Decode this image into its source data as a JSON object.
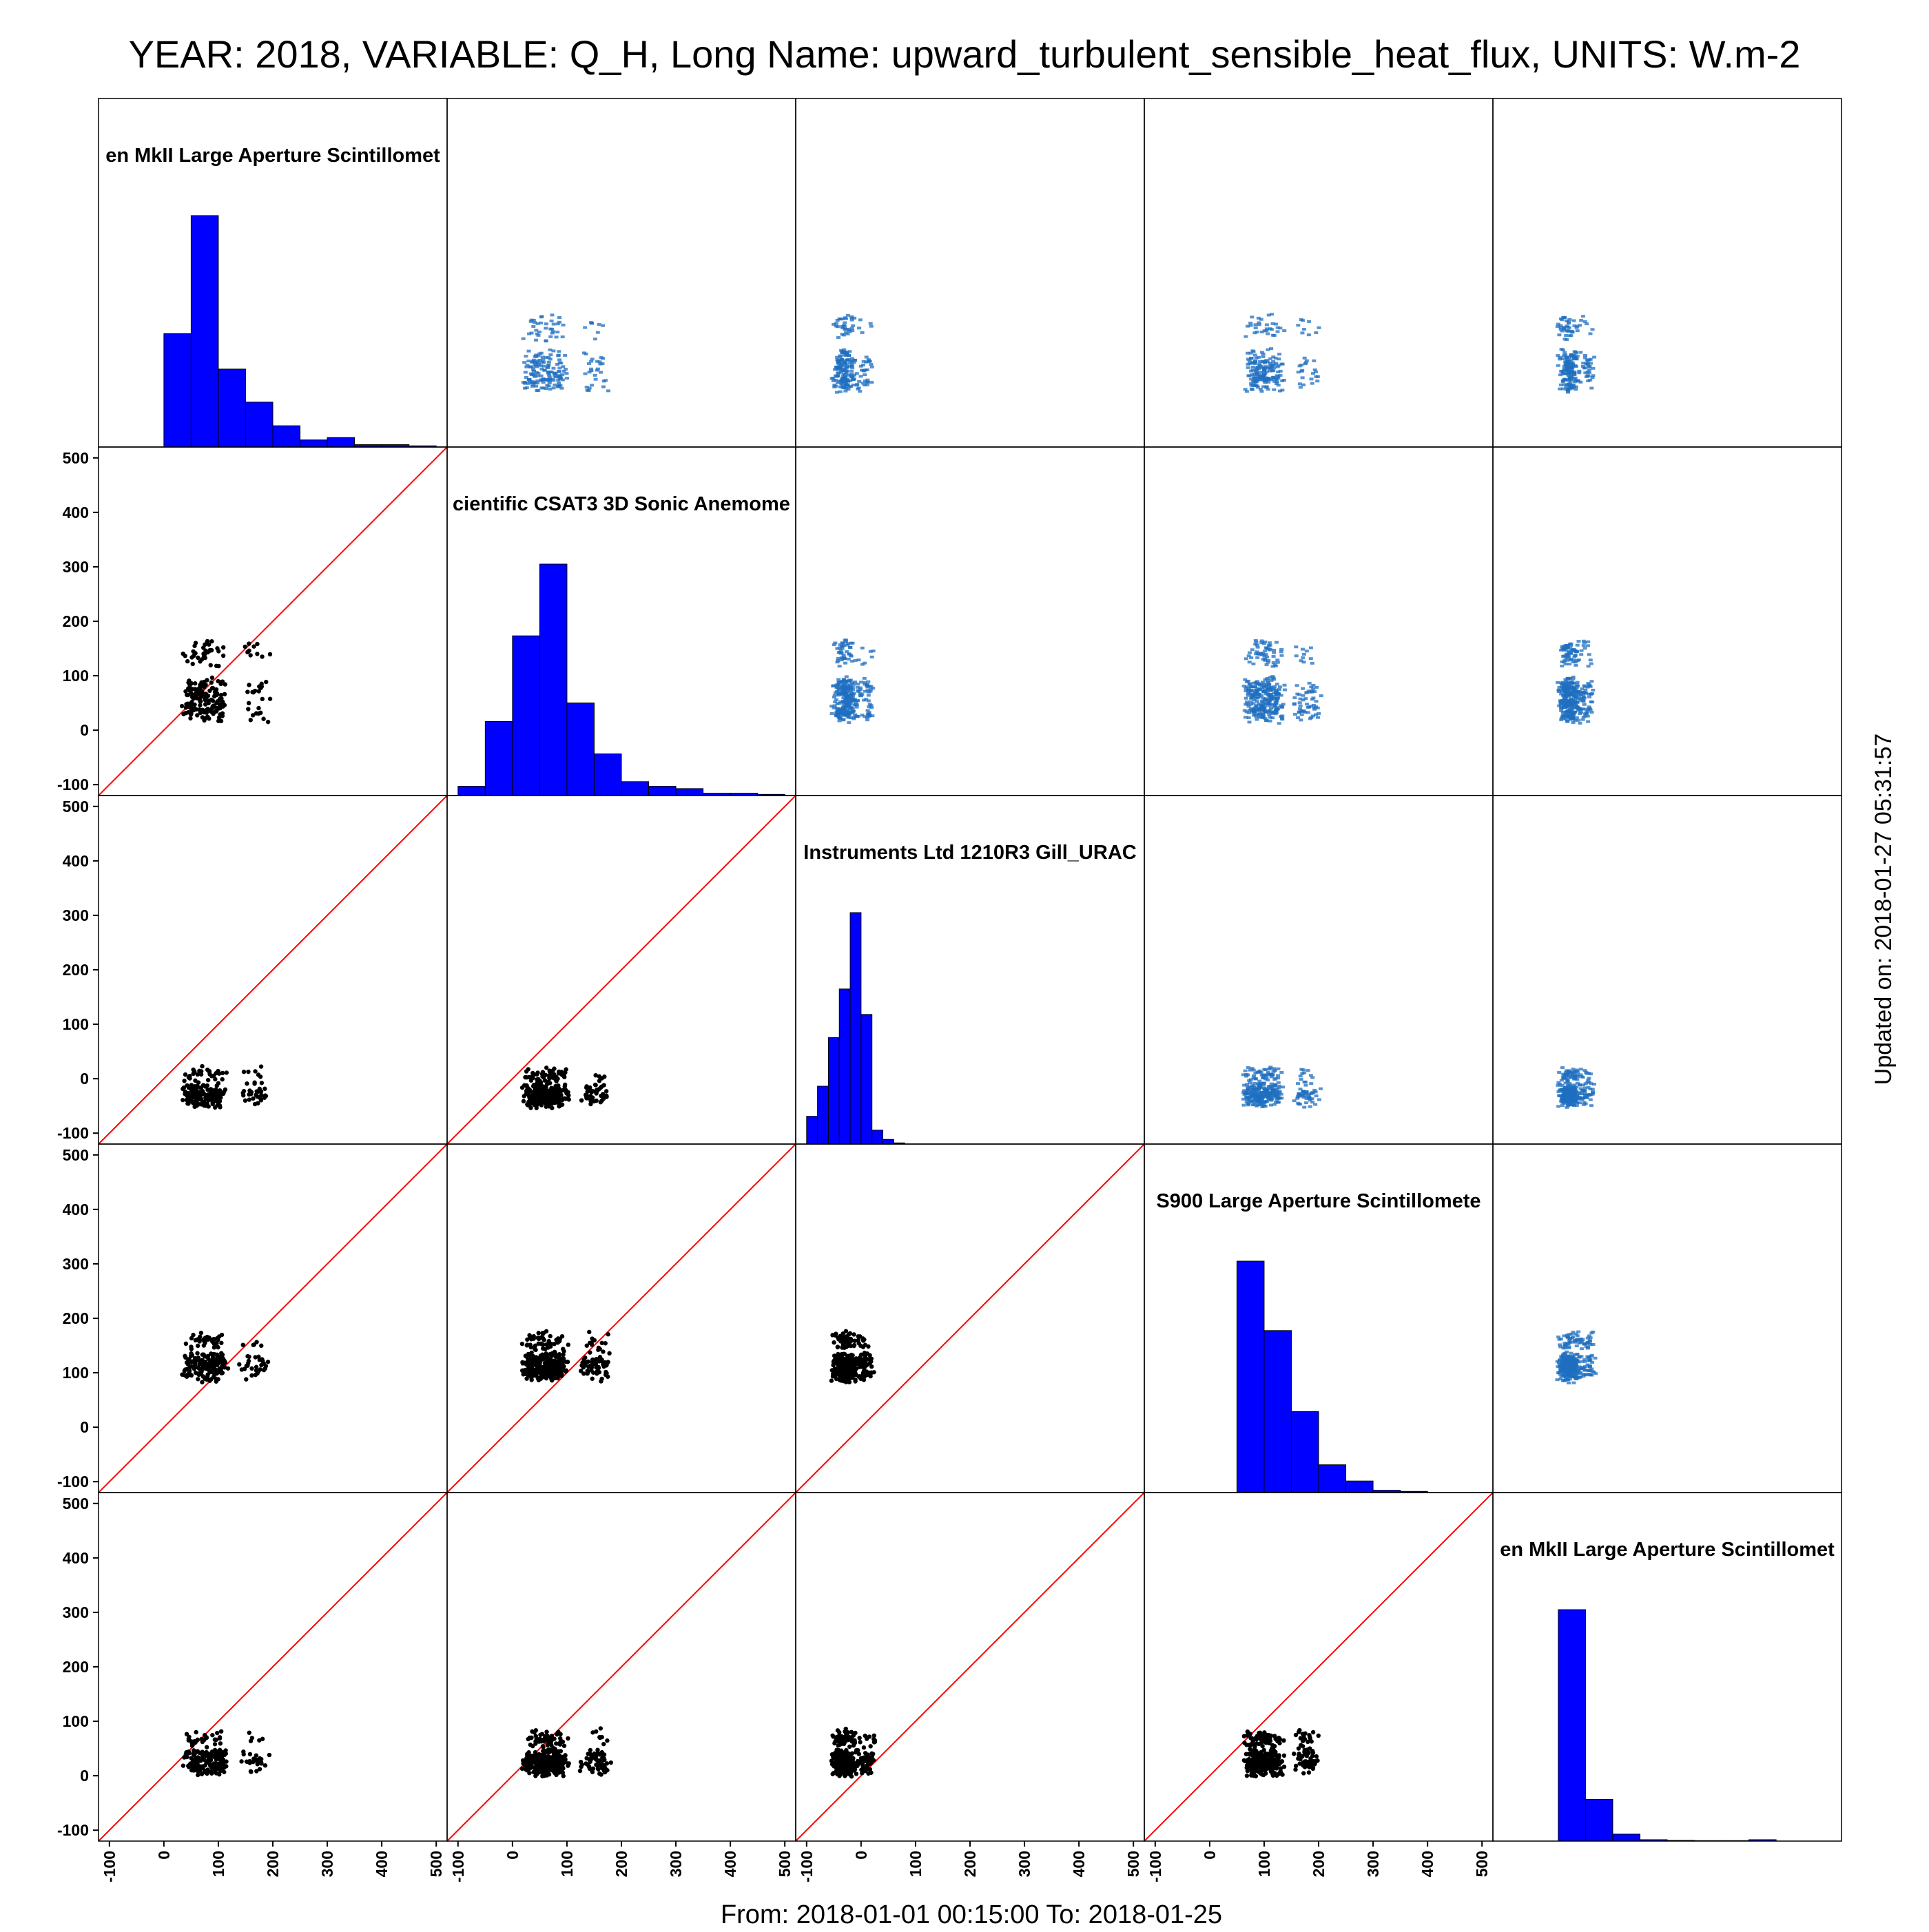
{
  "title": "YEAR: 2018, VARIABLE: Q_H, Long Name: upward_turbulent_sensible_heat_flux, UNITS: W.m-2",
  "footer": "From: 2018-01-01 00:15:00 To: 2018-01-25",
  "side_label": "Updated on: 2018-01-27 05:31:57",
  "chart_data": {
    "type": "scatter",
    "kind": "scatter-matrix",
    "axis_range": [
      -120,
      520
    ],
    "ticks": [
      -100,
      0,
      100,
      200,
      300,
      400,
      500
    ],
    "tick_labels": [
      "-100",
      "0",
      "100",
      "200",
      "300",
      "400",
      "500"
    ],
    "grid": false,
    "identity_line": true,
    "colors": {
      "histogram": "#0000ff",
      "lower_points": "#000000",
      "upper_points": "#1f6fc0",
      "identity_line": "#ff0000",
      "frame": "#000000"
    },
    "variables": [
      {
        "label": "en MkII Large Aperture Scintillomet",
        "histogram": {
          "bin_edges": [
            0,
            50,
            100,
            150,
            200,
            250,
            300,
            350,
            400,
            450,
            500
          ],
          "counts": [
            48,
            98,
            33,
            19,
            9,
            3,
            4,
            1,
            1,
            0.5
          ]
        },
        "cloud": {
          "center": [
            75,
            20
          ],
          "spread": [
            70,
            65
          ],
          "n": 220
        }
      },
      {
        "label": "cientific CSAT3 3D Sonic Anemome",
        "histogram": {
          "bin_edges": [
            -100,
            -50,
            0,
            50,
            100,
            150,
            200,
            250,
            300,
            350,
            400,
            450,
            500
          ],
          "counts": [
            4,
            32,
            69,
            100,
            40,
            18,
            6,
            4,
            3,
            1,
            1,
            0.5
          ]
        },
        "cloud": {
          "center": [
            60,
            55
          ],
          "spread": [
            70,
            70
          ],
          "n": 520
        }
      },
      {
        "label": "Instruments Ltd 1210R3 Gill_URAC",
        "histogram": {
          "bin_edges": [
            -100,
            -80,
            -60,
            -40,
            -20,
            0,
            20,
            40,
            60,
            80
          ],
          "counts": [
            12,
            25,
            46,
            67,
            100,
            56,
            6,
            2,
            0.5
          ]
        },
        "cloud": {
          "center": [
            -30,
            -30
          ],
          "spread": [
            30,
            30
          ],
          "n": 330
        }
      },
      {
        "label": "S900 Large Aperture Scintillomete",
        "histogram": {
          "bin_edges": [
            50,
            100,
            150,
            200,
            250,
            300,
            350,
            400
          ],
          "counts": [
            100,
            70,
            35,
            12,
            5,
            1,
            0.5
          ]
        },
        "cloud": {
          "center": [
            100,
            110
          ],
          "spread": [
            60,
            40
          ],
          "n": 380
        }
      },
      {
        "label": "en MkII Large Aperture Scintillomet",
        "histogram": {
          "bin_edges": [
            0,
            50,
            100,
            150,
            200,
            250,
            300,
            350,
            400
          ],
          "counts": [
            100,
            18,
            3,
            0.6,
            0.3,
            0.2,
            0.2,
            0.6
          ]
        },
        "cloud": {
          "center": [
            20,
            25
          ],
          "spread": [
            25,
            35
          ],
          "n": 380
        }
      }
    ]
  }
}
